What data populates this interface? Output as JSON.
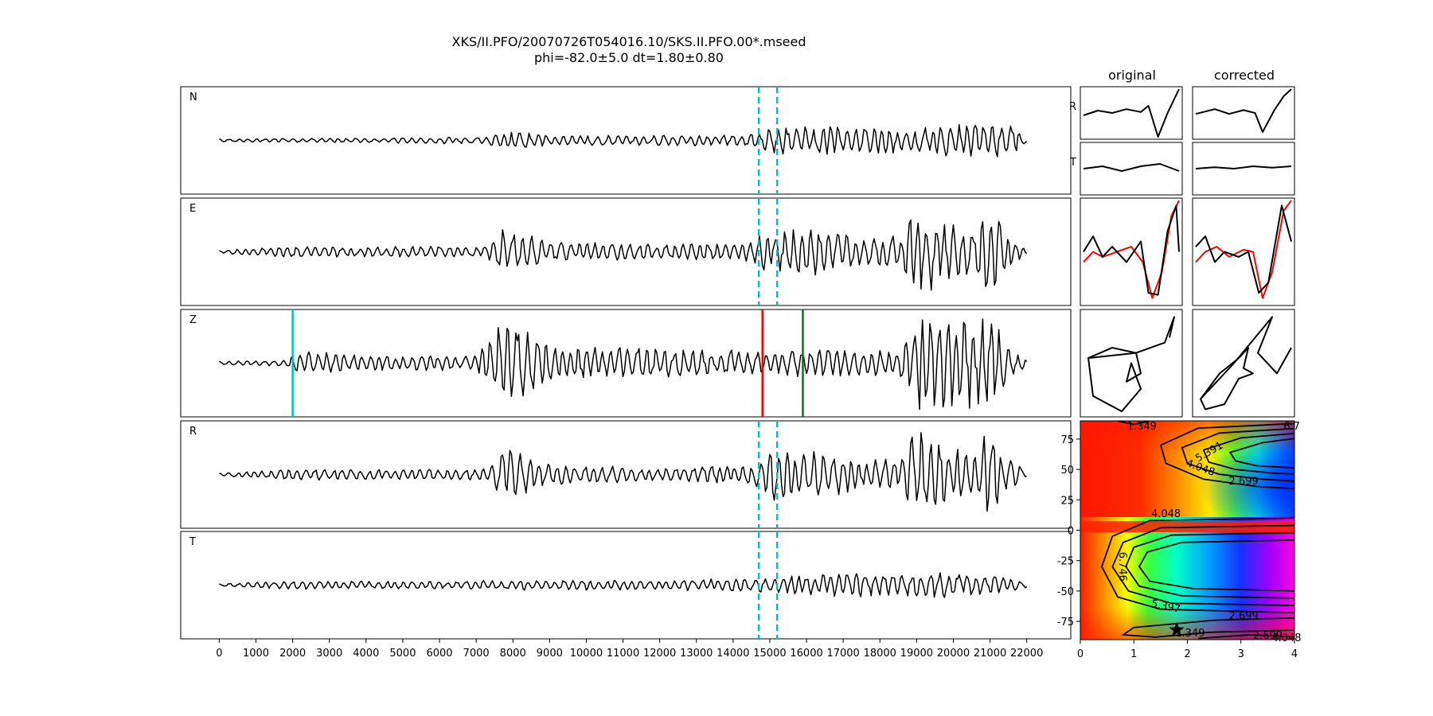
{
  "figure": {
    "title_line1": "XKS/II.PFO/20070726T054016.10/SKS.II.PFO.00*.mseed",
    "title_line2": "phi=-82.0±5.0 dt=1.80±0.80"
  },
  "chart_data": [
    {
      "type": "line",
      "title": "seismogram traces",
      "panels": [
        "N",
        "E",
        "Z",
        "R",
        "T"
      ],
      "x_ticks": [
        "0",
        "1000",
        "2000",
        "3000",
        "4000",
        "5000",
        "6000",
        "7000",
        "8000",
        "9000",
        "10000",
        "11000",
        "12000",
        "13000",
        "14000",
        "15000",
        "16000",
        "17000",
        "18000",
        "19000",
        "20000",
        "21000",
        "22000"
      ],
      "xlim": [
        -1050,
        23200
      ],
      "trace_x_range": [
        0,
        22000
      ],
      "window_markers": {
        "color": "#00bfc4",
        "style": "dashed",
        "x": [
          14700,
          15200
        ],
        "panels": [
          "N",
          "E",
          "R",
          "T"
        ]
      },
      "phase_markers": [
        {
          "panel": "Z",
          "x": 2000,
          "color": "#00bfbf"
        },
        {
          "panel": "Z",
          "x": 14800,
          "color": "#ff0000"
        },
        {
          "panel": "Z",
          "x": 15900,
          "color": "#008000"
        }
      ],
      "series": [
        {
          "name": "N",
          "envelope": [
            [
              0,
              0.03
            ],
            [
              4000,
              0.05
            ],
            [
              7000,
              0.07
            ],
            [
              8000,
              0.18
            ],
            [
              9000,
              0.1
            ],
            [
              12000,
              0.1
            ],
            [
              14500,
              0.12
            ],
            [
              15000,
              0.25
            ],
            [
              16000,
              0.3
            ],
            [
              17500,
              0.28
            ],
            [
              18500,
              0.25
            ],
            [
              19500,
              0.3
            ],
            [
              21000,
              0.35
            ],
            [
              21600,
              0.3
            ],
            [
              22000,
              0.05
            ]
          ]
        },
        {
          "name": "E",
          "envelope": [
            [
              0,
              0.03
            ],
            [
              2000,
              0.12
            ],
            [
              4000,
              0.1
            ],
            [
              7300,
              0.12
            ],
            [
              7700,
              0.5
            ],
            [
              8400,
              0.35
            ],
            [
              9000,
              0.2
            ],
            [
              12000,
              0.15
            ],
            [
              14500,
              0.2
            ],
            [
              15000,
              0.45
            ],
            [
              16500,
              0.45
            ],
            [
              17500,
              0.3
            ],
            [
              18500,
              0.35
            ],
            [
              19000,
              0.95
            ],
            [
              19700,
              0.6
            ],
            [
              20500,
              0.5
            ],
            [
              21000,
              0.85
            ],
            [
              21600,
              0.3
            ],
            [
              22000,
              0.05
            ]
          ]
        },
        {
          "name": "Z",
          "envelope": [
            [
              0,
              0.04
            ],
            [
              1800,
              0.06
            ],
            [
              2200,
              0.25
            ],
            [
              4000,
              0.15
            ],
            [
              7000,
              0.15
            ],
            [
              7700,
              0.85
            ],
            [
              8200,
              0.85
            ],
            [
              9000,
              0.35
            ],
            [
              12000,
              0.3
            ],
            [
              14500,
              0.25
            ],
            [
              15500,
              0.25
            ],
            [
              16500,
              0.3
            ],
            [
              18500,
              0.25
            ],
            [
              19000,
              0.95
            ],
            [
              21000,
              0.95
            ],
            [
              21600,
              0.3
            ],
            [
              22000,
              0.05
            ]
          ]
        },
        {
          "name": "R",
          "envelope": [
            [
              0,
              0.03
            ],
            [
              2000,
              0.12
            ],
            [
              4000,
              0.1
            ],
            [
              7300,
              0.12
            ],
            [
              7700,
              0.55
            ],
            [
              8400,
              0.35
            ],
            [
              9000,
              0.2
            ],
            [
              12000,
              0.15
            ],
            [
              14500,
              0.2
            ],
            [
              15000,
              0.5
            ],
            [
              16500,
              0.45
            ],
            [
              17500,
              0.3
            ],
            [
              18500,
              0.35
            ],
            [
              19000,
              0.95
            ],
            [
              19700,
              0.6
            ],
            [
              20500,
              0.5
            ],
            [
              21000,
              0.9
            ],
            [
              21600,
              0.3
            ],
            [
              22000,
              0.05
            ]
          ]
        },
        {
          "name": "T",
          "envelope": [
            [
              0,
              0.03
            ],
            [
              2000,
              0.08
            ],
            [
              6000,
              0.08
            ],
            [
              8000,
              0.1
            ],
            [
              12000,
              0.1
            ],
            [
              14500,
              0.14
            ],
            [
              16000,
              0.2
            ],
            [
              17000,
              0.25
            ],
            [
              18500,
              0.2
            ],
            [
              19500,
              0.25
            ],
            [
              21000,
              0.2
            ],
            [
              22000,
              0.05
            ]
          ]
        }
      ]
    },
    {
      "type": "line",
      "title": "particle motion",
      "column_titles": [
        "original",
        "corrected"
      ],
      "row_labels": [
        "R",
        "T"
      ],
      "series": [
        {
          "name": "original R",
          "points": [
            [
              0,
              0.55
            ],
            [
              0.15,
              0.45
            ],
            [
              0.3,
              0.5
            ],
            [
              0.45,
              0.42
            ],
            [
              0.6,
              0.48
            ],
            [
              0.68,
              0.35
            ],
            [
              0.78,
              1
            ],
            [
              0.88,
              0.5
            ],
            [
              1,
              0
            ]
          ]
        },
        {
          "name": "corrected R",
          "points": [
            [
              0,
              0.52
            ],
            [
              0.2,
              0.42
            ],
            [
              0.35,
              0.52
            ],
            [
              0.5,
              0.44
            ],
            [
              0.62,
              0.5
            ],
            [
              0.7,
              0.9
            ],
            [
              0.82,
              0.45
            ],
            [
              0.92,
              0.15
            ],
            [
              1,
              0
            ]
          ]
        },
        {
          "name": "original T",
          "points": [
            [
              0,
              0.5
            ],
            [
              0.2,
              0.45
            ],
            [
              0.4,
              0.55
            ],
            [
              0.6,
              0.45
            ],
            [
              0.8,
              0.4
            ],
            [
              1,
              0.55
            ]
          ]
        },
        {
          "name": "corrected T",
          "points": [
            [
              0,
              0.5
            ],
            [
              0.2,
              0.47
            ],
            [
              0.4,
              0.5
            ],
            [
              0.6,
              0.45
            ],
            [
              0.8,
              0.48
            ],
            [
              1,
              0.45
            ]
          ]
        },
        {
          "name": "original overlay black",
          "points": [
            [
              0,
              0.5
            ],
            [
              0.1,
              0.35
            ],
            [
              0.2,
              0.55
            ],
            [
              0.3,
              0.45
            ],
            [
              0.45,
              0.6
            ],
            [
              0.6,
              0.4
            ],
            [
              0.68,
              0.9
            ],
            [
              0.78,
              0.92
            ],
            [
              0.88,
              0.3
            ],
            [
              0.97,
              0.05
            ],
            [
              1,
              0.5
            ]
          ]
        },
        {
          "name": "original overlay red",
          "points": [
            [
              0,
              0.6
            ],
            [
              0.1,
              0.5
            ],
            [
              0.2,
              0.55
            ],
            [
              0.35,
              0.5
            ],
            [
              0.5,
              0.45
            ],
            [
              0.62,
              0.6
            ],
            [
              0.72,
              0.95
            ],
            [
              0.82,
              0.7
            ],
            [
              0.92,
              0.15
            ],
            [
              1,
              0
            ]
          ]
        },
        {
          "name": "corrected overlay black",
          "points": [
            [
              0,
              0.45
            ],
            [
              0.1,
              0.35
            ],
            [
              0.2,
              0.6
            ],
            [
              0.3,
              0.5
            ],
            [
              0.45,
              0.55
            ],
            [
              0.55,
              0.5
            ],
            [
              0.66,
              0.9
            ],
            [
              0.76,
              0.8
            ],
            [
              0.9,
              0.05
            ],
            [
              1,
              0.4
            ]
          ]
        },
        {
          "name": "corrected overlay red",
          "points": [
            [
              0,
              0.6
            ],
            [
              0.1,
              0.5
            ],
            [
              0.22,
              0.45
            ],
            [
              0.35,
              0.55
            ],
            [
              0.5,
              0.48
            ],
            [
              0.6,
              0.5
            ],
            [
              0.7,
              0.95
            ],
            [
              0.8,
              0.7
            ],
            [
              0.92,
              0.1
            ],
            [
              1,
              0.0
            ]
          ]
        },
        {
          "name": "original hodogram",
          "points": [
            [
              0.05,
              0.45
            ],
            [
              0.3,
              0.35
            ],
            [
              0.55,
              0.4
            ],
            [
              0.6,
              0.6
            ],
            [
              0.45,
              0.68
            ],
            [
              0.5,
              0.5
            ],
            [
              0.6,
              0.75
            ],
            [
              0.4,
              0.97
            ],
            [
              0.1,
              0.82
            ],
            [
              0.05,
              0.45
            ],
            [
              0.55,
              0.4
            ],
            [
              0.85,
              0.3
            ],
            [
              0.95,
              0.05
            ],
            [
              0.9,
              0.25
            ]
          ]
        },
        {
          "name": "corrected hodogram",
          "points": [
            [
              0.05,
              0.85
            ],
            [
              0.25,
              0.6
            ],
            [
              0.45,
              0.45
            ],
            [
              0.55,
              0.35
            ],
            [
              0.5,
              0.55
            ],
            [
              0.6,
              0.6
            ],
            [
              0.45,
              0.65
            ],
            [
              0.3,
              0.9
            ],
            [
              0.1,
              0.95
            ],
            [
              0.05,
              0.85
            ],
            [
              0.4,
              0.5
            ],
            [
              0.8,
              0.05
            ],
            [
              0.65,
              0.4
            ],
            [
              0.85,
              0.6
            ],
            [
              1,
              0.35
            ]
          ]
        }
      ]
    },
    {
      "type": "heatmap",
      "title": "energy grid",
      "x_ticks": [
        "0",
        "1",
        "2",
        "3",
        "4"
      ],
      "y_ticks": [
        "75",
        "50",
        "25",
        "0",
        "-25",
        "-50",
        "-75"
      ],
      "xlim": [
        0,
        4
      ],
      "ylim": [
        -90,
        90
      ],
      "contour_labels": [
        "1.349",
        "5.391",
        "6.7",
        "4.048",
        "2.699",
        "4.048",
        "6.746",
        "5.397",
        "2.699",
        "1.349",
        "2.699",
        "4.048"
      ],
      "minimum": {
        "dt": 1.8,
        "phi": -82
      },
      "colormap": "gist_rainbow"
    }
  ]
}
